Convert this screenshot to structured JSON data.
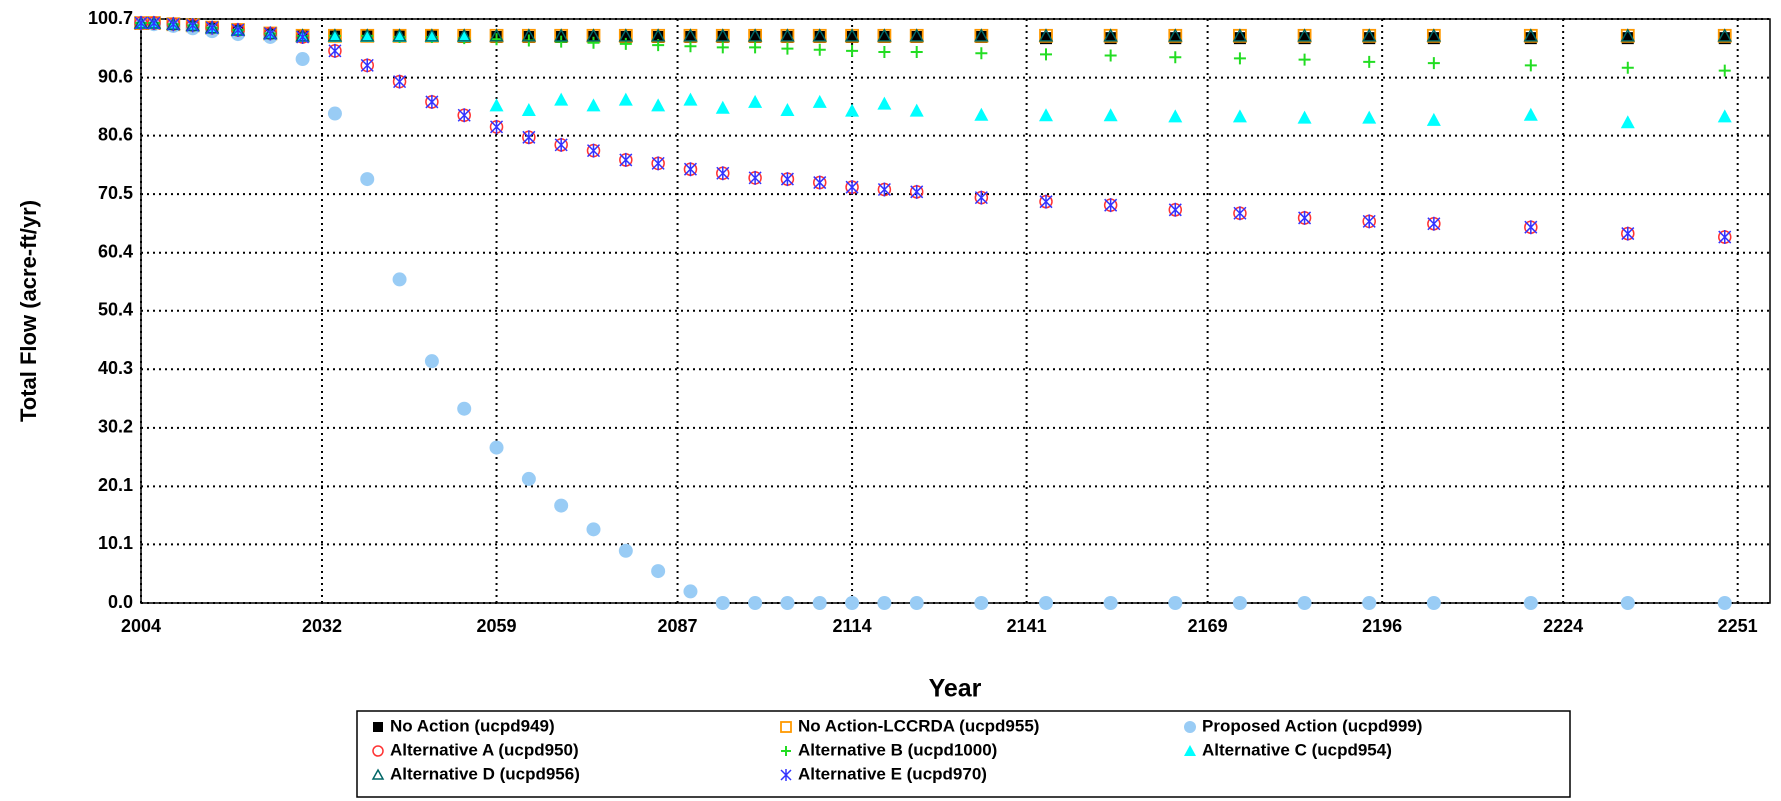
{
  "chart_data": {
    "type": "scatter",
    "x_label": "Year",
    "y_label": "Total Flow (acre-ft/yr)",
    "x": [
      2004,
      2006,
      2009,
      2012,
      2015,
      2019,
      2024,
      2029,
      2034,
      2039,
      2044,
      2049,
      2054,
      2059,
      2064,
      2069,
      2074,
      2079,
      2084,
      2089,
      2094,
      2099,
      2104,
      2109,
      2114,
      2119,
      2124,
      2134,
      2144,
      2154,
      2164,
      2174,
      2184,
      2194,
      2204,
      2219,
      2234,
      2249
    ],
    "xlim": [
      2004,
      2256
    ],
    "xticks": [
      2004,
      2032,
      2059,
      2087,
      2114,
      2141,
      2169,
      2196,
      2224,
      2251
    ],
    "ylim": [
      0,
      100.7
    ],
    "yticks": [
      {
        "value": 0,
        "label": "0.0"
      },
      10.1,
      20.1,
      30.2,
      40.3,
      50.4,
      60.4,
      70.5,
      80.6,
      90.6,
      100.7
    ],
    "grid": true,
    "series": [
      {
        "name": "No Action (ucpd949)",
        "color": "#000000",
        "marker": "square",
        "values": [
          100,
          100,
          99.8,
          99.6,
          99.2,
          98.8,
          98.2,
          97.8,
          97.8,
          97.8,
          97.8,
          97.8,
          97.6,
          97.6,
          97.6,
          97.6,
          97.6,
          97.6,
          97.6,
          97.6,
          97.6,
          97.6,
          97.6,
          97.6,
          97.6,
          97.6,
          97.6,
          97.6,
          97.4,
          97.4,
          97.4,
          97.4,
          97.4,
          97.4,
          97.4,
          97.4,
          97.4,
          97.4
        ]
      },
      {
        "name": "No Action-LCCRDA (ucpd955)",
        "color": "#ff9900",
        "marker": "open-square",
        "values": [
          100,
          100,
          99.8,
          99.6,
          99.2,
          98.8,
          98.2,
          97.8,
          97.8,
          97.8,
          97.8,
          97.8,
          97.8,
          97.8,
          97.8,
          97.8,
          97.8,
          97.8,
          97.8,
          97.8,
          97.8,
          97.8,
          97.8,
          97.8,
          97.8,
          97.8,
          97.8,
          97.8,
          97.8,
          97.8,
          97.8,
          97.8,
          97.8,
          97.8,
          97.8,
          97.8,
          97.8,
          97.8
        ]
      },
      {
        "name": "Proposed Action (ucpd999)",
        "color": "#99ccf5",
        "marker": "circle",
        "values": [
          100,
          99.8,
          99.5,
          99.1,
          98.6,
          98.1,
          97.6,
          93.8,
          84.4,
          73.1,
          55.8,
          41.7,
          33.5,
          26.8,
          21.4,
          16.8,
          12.7,
          9.0,
          5.5,
          2.0,
          0,
          0,
          0,
          0,
          0,
          0,
          0,
          0,
          0,
          0,
          0,
          0,
          0,
          0,
          0,
          0,
          0,
          0
        ]
      },
      {
        "name": "Alternative A (ucpd950)",
        "color": "#ff3333",
        "marker": "open-circle",
        "values": [
          100,
          100,
          99.8,
          99.6,
          99.2,
          98.8,
          98.2,
          97.6,
          95.2,
          92.7,
          89.9,
          86.4,
          84.1,
          82.1,
          80.3,
          79.0,
          78.0,
          76.4,
          75.8,
          74.8,
          74.1,
          73.3,
          73.1,
          72.5,
          71.7,
          71.3,
          70.9,
          69.9,
          69.2,
          68.6,
          67.8,
          67.2,
          66.4,
          65.8,
          65.4,
          64.8,
          63.7,
          63.1
        ]
      },
      {
        "name": "Alternative B (ucpd1000)",
        "color": "#22dd22",
        "marker": "plus",
        "values": [
          100,
          100,
          99.8,
          99.6,
          99.2,
          98.8,
          98.2,
          97.8,
          97.8,
          97.8,
          97.6,
          97.6,
          97.4,
          97.2,
          97.0,
          96.8,
          96.6,
          96.4,
          96.2,
          96.0,
          95.8,
          95.8,
          95.6,
          95.4,
          95.2,
          95.0,
          95.0,
          94.8,
          94.6,
          94.4,
          94.1,
          93.9,
          93.7,
          93.3,
          93.1,
          92.7,
          92.3,
          91.8
        ]
      },
      {
        "name": "Alternative C (ucpd954)",
        "color": "#00ffff",
        "marker": "triangle",
        "values": [
          100,
          100,
          99.8,
          99.6,
          99.2,
          98.8,
          98.2,
          97.8,
          97.8,
          97.8,
          97.8,
          97.8,
          97.8,
          85.8,
          85.0,
          86.8,
          85.8,
          86.8,
          85.8,
          86.8,
          85.4,
          86.4,
          85.0,
          86.4,
          84.9,
          86.1,
          84.9,
          84.2,
          84.1,
          84.1,
          83.9,
          83.9,
          83.7,
          83.7,
          83.3,
          84.2,
          82.9,
          83.9
        ]
      },
      {
        "name": "Alternative D (ucpd956)",
        "color": "#006666",
        "marker": "open-triangle",
        "values": [
          100,
          100,
          99.8,
          99.6,
          99.2,
          98.8,
          98.2,
          97.8,
          97.8,
          97.8,
          97.8,
          97.8,
          97.8,
          97.8,
          97.8,
          97.8,
          97.8,
          97.8,
          97.8,
          97.8,
          97.8,
          97.8,
          97.8,
          97.8,
          97.8,
          97.8,
          97.8,
          97.8,
          97.8,
          97.8,
          97.8,
          97.8,
          97.8,
          97.8,
          97.8,
          97.8,
          97.8,
          97.8
        ]
      },
      {
        "name": "Alternative E (ucpd970)",
        "color": "#3333ff",
        "marker": "star",
        "values": [
          100,
          100,
          99.8,
          99.6,
          99.2,
          98.8,
          98.2,
          97.6,
          95.2,
          92.7,
          89.9,
          86.4,
          84.1,
          82.1,
          80.3,
          79.0,
          78.0,
          76.4,
          75.8,
          74.8,
          74.1,
          73.3,
          73.1,
          72.5,
          71.7,
          71.3,
          70.9,
          69.9,
          69.2,
          68.6,
          67.8,
          67.2,
          66.4,
          65.8,
          65.4,
          64.8,
          63.7,
          63.1
        ]
      }
    ]
  }
}
